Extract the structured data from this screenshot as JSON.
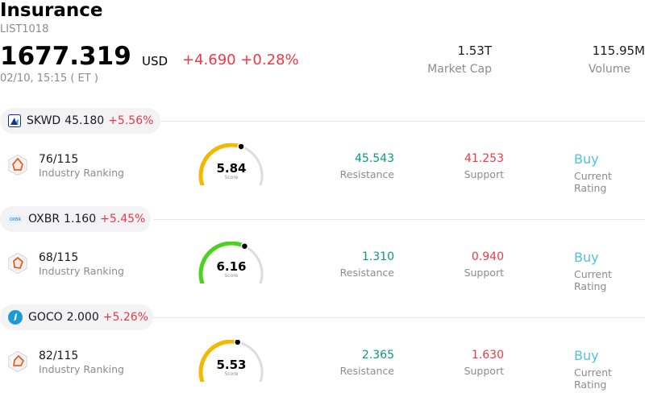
{
  "header": {
    "title": "Insurance",
    "code": "LIST1018",
    "price": "1677.319",
    "currency": "USD",
    "change": "+4.690 +0.28%",
    "timestamp": "02/10, 15:15 ( ET )",
    "market_cap_value": "1.53T",
    "market_cap_label": "Market Cap",
    "volume_value": "115.95M",
    "volume_label": "Volume"
  },
  "colors": {
    "negative_red": "#f23645",
    "positive_green": "#089981",
    "rating_cyan": "#4fc3d9",
    "gauge_yellow": "#f5b800",
    "gauge_green": "#4cd11f",
    "gauge_track": "#dcdce3"
  },
  "stocks": [
    {
      "ticker": "SKWD",
      "price": "45.180",
      "change_pct": "+5.56%",
      "logo_icon": "skwd-logo-icon",
      "rank": "76/115",
      "rank_label": "Industry Ranking",
      "score": "5.84",
      "score_label": "Score",
      "score_fraction": 0.584,
      "gauge_color": "#f5b800",
      "resistance": "45.543",
      "resistance_label": "Resistance",
      "support": "41.253",
      "support_label": "Support",
      "rating": "Buy",
      "rating_label": "Current Rating"
    },
    {
      "ticker": "OXBR",
      "price": "1.160",
      "change_pct": "+5.45%",
      "logo_icon": "oxbr-logo-icon",
      "rank": "68/115",
      "rank_label": "Industry Ranking",
      "score": "6.16",
      "score_label": "Score",
      "score_fraction": 0.616,
      "gauge_color": "#4cd11f",
      "resistance": "1.310",
      "resistance_label": "Resistance",
      "support": "0.940",
      "support_label": "Support",
      "rating": "Buy",
      "rating_label": "Current Rating"
    },
    {
      "ticker": "GOCO",
      "price": "2.000",
      "change_pct": "+5.26%",
      "logo_icon": "goco-logo-icon",
      "rank": "82/115",
      "rank_label": "Industry Ranking",
      "score": "5.53",
      "score_label": "Score",
      "score_fraction": 0.553,
      "gauge_color": "#f5b800",
      "resistance": "2.365",
      "resistance_label": "Resistance",
      "support": "1.630",
      "support_label": "Support",
      "rating": "Buy",
      "rating_label": "Current Rating"
    }
  ]
}
